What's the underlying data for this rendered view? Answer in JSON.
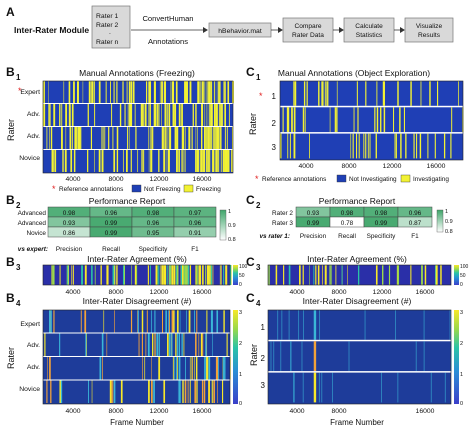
{
  "module": {
    "panel_letter": "A",
    "label": "Inter-Rater Module",
    "stack_lines": [
      "Rater 1",
      "Rater 2",
      ".",
      "Rater n"
    ],
    "convert_lines": [
      "ConvertHuman",
      "Annotations"
    ],
    "file": "hBehavior.mat",
    "compare_lines": [
      "Compare",
      "Rater Data"
    ],
    "stats_lines": [
      "Calculate",
      "Statistics"
    ],
    "visualize_lines": [
      "Visualize",
      "Results"
    ]
  },
  "colors": {
    "not_behavior": "#1f3fb5",
    "behavior": "#f2f233",
    "reference_star": "#e02020",
    "disagree_0": "#1e3c9a",
    "disagree_1": "#3ab7d8",
    "disagree_2": "#f2a23a",
    "disagree_3": "#f7e829"
  },
  "panels": {
    "b1": {
      "letter": "B",
      "sub": "1",
      "title": "Manual Annotations (Freezing)",
      "ylabel": "Rater",
      "row_labels": [
        "Expert",
        "Adv.",
        "Adv.",
        "Novice"
      ],
      "x_ticks": [
        "4000",
        "8000",
        "12000",
        "16000"
      ],
      "legend": {
        "reference": "Reference annotations",
        "not": "Not Freezing",
        "yes": "Freezing"
      }
    },
    "c1": {
      "letter": "C",
      "sub": "1",
      "title": "Manual Annotations (Object Exploration)",
      "ylabel": "Rater",
      "row_labels": [
        "1",
        "2",
        "3"
      ],
      "x_ticks": [
        "4000",
        "8000",
        "12000",
        "16000"
      ],
      "legend": {
        "reference": "Reference annotations",
        "not": "Not Investigating",
        "yes": "Investigating"
      }
    },
    "b2": {
      "letter": "B",
      "sub": "2",
      "title": "Performance Report",
      "row_labels": [
        "Advanced",
        "Advanced",
        "Novice"
      ],
      "values": [
        [
          "0.98",
          "0.96",
          "0.98",
          "0.97"
        ],
        [
          "0.93",
          "0.99",
          "0.96",
          "0.96"
        ],
        [
          "0.86",
          "0.99",
          "0.95",
          "0.91"
        ]
      ],
      "foot_label": "vs expert:",
      "columns": [
        "Precision",
        "Recall",
        "Specificity",
        "F1"
      ],
      "scale_ticks": [
        "1",
        "0.9",
        "0.8"
      ]
    },
    "c2": {
      "letter": "C",
      "sub": "2",
      "title": "Performance Report",
      "row_labels": [
        "Rater 2",
        "Rater 3"
      ],
      "values": [
        [
          "0.93",
          "0.98",
          "0.98",
          "0.96"
        ],
        [
          "0.99",
          "0.78",
          "0.99",
          "0.87"
        ]
      ],
      "foot_label": "vs rater 1:",
      "columns": [
        "Precision",
        "Recall",
        "Specificity",
        "F1"
      ],
      "scale_ticks": [
        "1",
        "0.9",
        "0.8"
      ]
    },
    "b3": {
      "letter": "B",
      "sub": "3",
      "title": "Inter-Rater Agreement (%)",
      "x_ticks": [
        "4000",
        "8000",
        "12000",
        "16000"
      ],
      "scale_ticks": [
        "100",
        "50",
        "0"
      ]
    },
    "c3": {
      "letter": "C",
      "sub": "3",
      "title": "Inter-Rater Agreement (%)",
      "x_ticks": [
        "4000",
        "8000",
        "12000",
        "16000"
      ],
      "scale_ticks": [
        "100",
        "50",
        "0"
      ]
    },
    "b4": {
      "letter": "B",
      "sub": "4",
      "title": "Inter-Rater Disagreement (#)",
      "ylabel": "Rater",
      "row_labels": [
        "Expert",
        "Adv.",
        "Adv.",
        "Novice"
      ],
      "x_ticks": [
        "4000",
        "8000",
        "12000",
        "16000"
      ],
      "scale_ticks": [
        "3",
        "2",
        "1",
        "0"
      ],
      "xlabel": "Frame Number"
    },
    "c4": {
      "letter": "C",
      "sub": "4",
      "title": "Inter-Rater Disagreement (#)",
      "ylabel": "Rater",
      "row_labels": [
        "1",
        "2",
        "3"
      ],
      "x_ticks": [
        "4000",
        "8000",
        "16000"
      ],
      "scale_ticks": [
        "3",
        "2",
        "1",
        "0"
      ],
      "xlabel": "Frame Number"
    }
  }
}
